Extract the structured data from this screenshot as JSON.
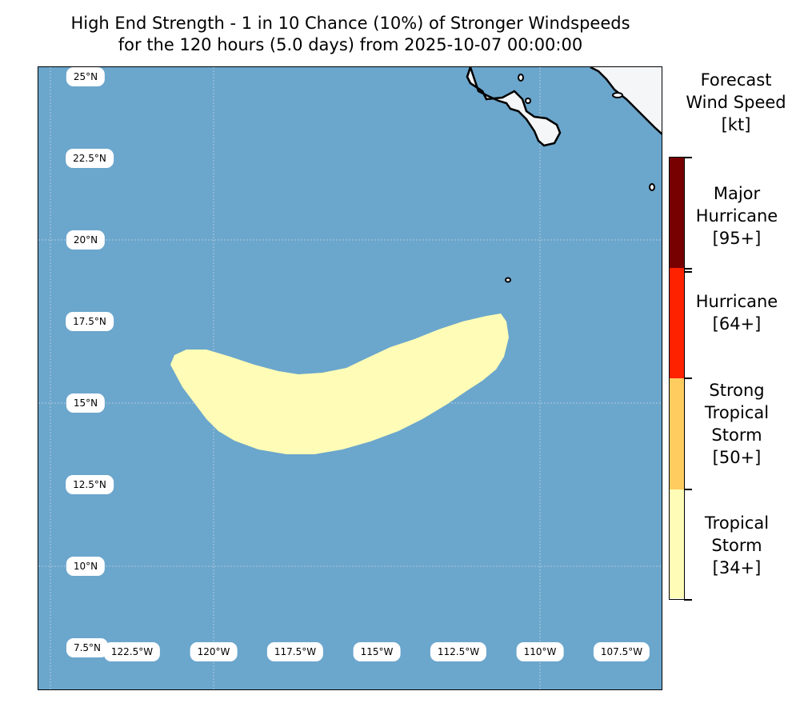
{
  "title": {
    "line1": "High End Strength - 1 in 10 Chance (10%) of Stronger Windspeeds",
    "line2": "for the 120 hours (5.0 days) from 2025-10-07 00:00:00"
  },
  "map": {
    "lat_labels": [
      "25°N",
      "22.5°N",
      "20°N",
      "17.5°N",
      "15°N",
      "12.5°N",
      "10°N",
      "7.5°N"
    ],
    "lon_labels": [
      "122.5°W",
      "120°W",
      "117.5°W",
      "115°W",
      "112.5°W",
      "110°W",
      "107.5°W"
    ],
    "ocean_color": "#6ba6cc",
    "land_color": "#f5f6f8",
    "gridlines": true
  },
  "wind_field": {
    "category_shown": "Tropical Storm [34+]",
    "fill_color": "#fefcb6"
  },
  "colorbar": {
    "title_lines": [
      "Forecast",
      "Wind Speed",
      "[kt]"
    ],
    "categories": [
      {
        "label_lines": [
          "Major",
          "Hurricane",
          "[95+]"
        ],
        "color": "#770000",
        "min_kt": 95
      },
      {
        "label_lines": [
          "Hurricane",
          "[64+]"
        ],
        "color": "#ff2200",
        "min_kt": 64
      },
      {
        "label_lines": [
          "Strong",
          "Tropical",
          "Storm",
          "[50+]"
        ],
        "color": "#ffcc60",
        "min_kt": 50
      },
      {
        "label_lines": [
          "Tropical",
          "Storm",
          "[34+]"
        ],
        "color": "#fefcb6",
        "min_kt": 34
      }
    ]
  }
}
